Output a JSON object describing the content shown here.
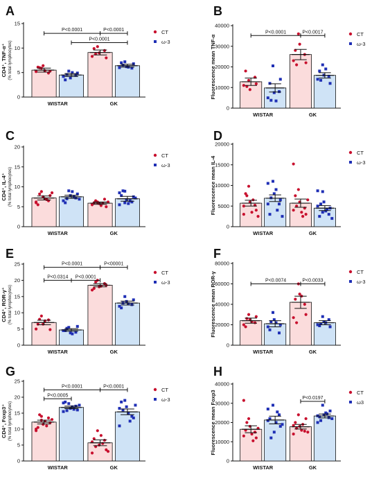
{
  "colors": {
    "ct_fill": "#fbdcdc",
    "ct_dot": "#c8102e",
    "w3_fill": "#cfe3f6",
    "w3_dot": "#1f2fb5",
    "axis": "#111111"
  },
  "chart_data": [
    {
      "id": "A",
      "letter": "A",
      "type": "bar",
      "categories": [
        "WISTAR",
        "GK"
      ],
      "ylabel_main": "CD4⁺, TNF-α⁺",
      "ylabel_sub": "(% total lymphocytes)",
      "ylim": [
        0,
        15
      ],
      "yticks": [
        0,
        5,
        10,
        15
      ],
      "legend": [
        "CT",
        "ω-3"
      ],
      "series": [
        {
          "name": "CT",
          "means": [
            5.5,
            9.1
          ],
          "sem": [
            0.4,
            0.5
          ],
          "points": [
            [
              5.2,
              5.9,
              6.4,
              4.9,
              5.3,
              6.1,
              6.0,
              5.4
            ],
            [
              8.3,
              10.3,
              9.0,
              9.5,
              8.0,
              9.9,
              8.8
            ]
          ]
        },
        {
          "name": "ω-3",
          "means": [
            4.5,
            6.4
          ],
          "sem": [
            0.3,
            0.3
          ],
          "points": [
            [
              4.2,
              5.3,
              3.9,
              4.5,
              4.9,
              3.5,
              4.6,
              5.0
            ],
            [
              6.0,
              7.2,
              6.2,
              5.9,
              6.8,
              7.0,
              6.5,
              6.1
            ]
          ]
        }
      ],
      "comparisons": [
        {
          "label": "P<0.0001",
          "from": "0:0",
          "to": "1:0",
          "y": 13.0,
          "row": 0
        },
        {
          "label": "P<0.0001",
          "from": "1:0",
          "to": "1:1",
          "y": 13.0,
          "row": 0
        },
        {
          "label": "P<0.0001",
          "from": "0:1",
          "to": "1:1",
          "y": 11.1,
          "row": 1
        }
      ]
    },
    {
      "id": "B",
      "letter": "B",
      "type": "bar",
      "categories": [
        "WISTAR",
        "GK"
      ],
      "ylabel_main": "Fluorescence mean TNF-α",
      "ylabel_sub": "",
      "ylim": [
        0,
        40000
      ],
      "yticks": [
        0,
        10000,
        20000,
        30000,
        40000
      ],
      "legend": [
        "CT",
        "ω-3"
      ],
      "series": [
        {
          "name": "CT",
          "means": [
            12800,
            26000
          ],
          "sem": [
            1800,
            2500
          ],
          "points": [
            [
              11000,
              13500,
              9000,
              15000,
              11800,
              18000,
              10500
            ],
            [
              23000,
              36000,
              31000,
              26000,
              22000,
              28000,
              21000
            ]
          ]
        },
        {
          "name": "ω-3",
          "means": [
            9800,
            15900
          ],
          "sem": [
            2000,
            1300
          ],
          "points": [
            [
              5000,
              20500,
              7500,
              8000,
              14000,
              12000,
              3800,
              3500
            ],
            [
              14000,
              21000,
              16000,
              15500,
              12000,
              18000,
              13500,
              19000
            ]
          ]
        }
      ],
      "comparisons": [
        {
          "label": "P<0.0001",
          "from": "0:0",
          "to": "1:0",
          "y": 35200,
          "row": 0
        },
        {
          "label": "P<0.0017",
          "from": "1:0",
          "to": "1:1",
          "y": 35200,
          "row": 0
        }
      ]
    },
    {
      "id": "C",
      "letter": "C",
      "type": "bar",
      "categories": [
        "WISTAR",
        "GK"
      ],
      "ylabel_main": "CD4⁺, IL-4⁺",
      "ylabel_sub": "(% total lymphocytes)",
      "ylim": [
        0,
        20
      ],
      "yticks": [
        0,
        5,
        10,
        15,
        20
      ],
      "legend": [
        "CT",
        "ω-3"
      ],
      "series": [
        {
          "name": "CT",
          "means": [
            7.2,
            5.9
          ],
          "sem": [
            0.5,
            0.3
          ],
          "points": [
            [
              6.0,
              8.8,
              7.5,
              6.5,
              7.8,
              5.5,
              8.2,
              7.0,
              6.8,
              8.5,
              6.2
            ],
            [
              5.5,
              6.2,
              5.8,
              6.9,
              5.0,
              6.0,
              6.5,
              5.3,
              5.9,
              6.2,
              5.6,
              6.0
            ]
          ]
        },
        {
          "name": "ω-3",
          "means": [
            7.5,
            7.0
          ],
          "sem": [
            0.4,
            0.6
          ],
          "points": [
            [
              6.5,
              9.0,
              7.8,
              7.2,
              8.2,
              6.0,
              7.0,
              8.8,
              7.5,
              6.9
            ],
            [
              5.5,
              8.9,
              6.8,
              6.2,
              7.5,
              7.8,
              9.0,
              5.8,
              6.5,
              7.2,
              8.5,
              6.0
            ]
          ]
        }
      ],
      "comparisons": []
    },
    {
      "id": "D",
      "letter": "D",
      "type": "bar",
      "categories": [
        "WISTAR",
        "GK"
      ],
      "ylabel_main": "Fluorescence mean IL-4",
      "ylabel_sub": "",
      "ylim": [
        0,
        20000
      ],
      "yticks": [
        0,
        5000,
        10000,
        15000,
        20000
      ],
      "legend": [
        "CT",
        "ω-3"
      ],
      "series": [
        {
          "name": "CT",
          "means": [
            5700,
            5700
          ],
          "sem": [
            700,
            1000
          ],
          "points": [
            [
              3000,
              9800,
              6000,
              5200,
              4000,
              8000,
              7500,
              3500,
              6500,
              2500,
              5000
            ],
            [
              15200,
              9000,
              6000,
              4500,
              3000,
              7500,
              5000,
              3500,
              2500,
              6500,
              4000
            ]
          ]
        },
        {
          "name": "ω-3",
          "means": [
            6900,
            4500
          ],
          "sem": [
            800,
            600
          ],
          "points": [
            [
              10500,
              11000,
              8000,
              5500,
              6500,
              3000,
              7000,
              9000,
              4000,
              2500,
              5500
            ],
            [
              8700,
              8500,
              6000,
              3000,
              4500,
              2500,
              5500,
              3800,
              4200,
              2000,
              5000,
              3500
            ]
          ]
        }
      ],
      "comparisons": []
    },
    {
      "id": "E",
      "letter": "E",
      "type": "bar",
      "categories": [
        "WISTAR",
        "GK"
      ],
      "ylabel_main": "CD4⁺, ROR-γ⁺",
      "ylabel_sub": "(% total lymphocytes)",
      "ylim": [
        0,
        25
      ],
      "yticks": [
        0,
        5,
        10,
        15,
        20,
        25
      ],
      "legend": [
        "CT",
        "ω-3"
      ],
      "series": [
        {
          "name": "CT",
          "means": [
            7.0,
            18.5
          ],
          "sem": [
            0.7,
            0.5
          ],
          "points": [
            [
              5.0,
              9.0,
              6.5,
              7.8,
              4.8,
              6.5,
              8.0,
              7.5
            ],
            [
              17.0,
              20.0,
              18.0,
              19.0,
              18.5,
              17.5,
              19.5,
              18.2
            ]
          ]
        },
        {
          "name": "ω-3",
          "means": [
            4.7,
            13.0
          ],
          "sem": [
            0.4,
            0.6
          ],
          "points": [
            [
              4.5,
              5.5,
              3.8,
              4.0,
              5.8,
              4.5,
              5.2,
              3.5
            ],
            [
              12.0,
              15.0,
              13.5,
              12.5,
              14.0,
              11.5,
              13.0,
              12.8
            ]
          ]
        }
      ],
      "comparisons": [
        {
          "label": "P<0.0001",
          "from": "0:0",
          "to": "1:0",
          "y": 24.0,
          "row": 0
        },
        {
          "label": "P<00001",
          "from": "1:0",
          "to": "1:1",
          "y": 24.0,
          "row": 0
        },
        {
          "label": "P<0.0314",
          "from": "0:0",
          "to": "0:1",
          "y": 20.0,
          "row": 1
        },
        {
          "label": "P<0.0001",
          "from": "0:1",
          "to": "1:0",
          "y": 20.0,
          "row": 1
        }
      ]
    },
    {
      "id": "F",
      "letter": "F",
      "type": "bar",
      "categories": [
        "WISTAR",
        "GK"
      ],
      "ylabel_main": "Fluorescence mean ROR-γ",
      "ylabel_sub": "",
      "ylim": [
        0,
        80000
      ],
      "yticks": [
        0,
        20000,
        40000,
        60000,
        80000
      ],
      "legend": [
        "CT",
        "ω-3"
      ],
      "series": [
        {
          "name": "CT",
          "means": [
            24000,
            42000
          ],
          "sem": [
            2500,
            6000
          ],
          "points": [
            [
              20000,
              30000,
              25000,
              22000,
              28000,
              18000,
              26000,
              23000
            ],
            [
              27000,
              60000,
              50000,
              40000,
              30000,
              45000,
              22000,
              48000
            ]
          ]
        },
        {
          "name": "ω-3",
          "means": [
            21000,
            22000
          ],
          "sem": [
            3000,
            2000
          ],
          "points": [
            [
              18000,
              32000,
              25000,
              12000,
              20000,
              15000,
              23000,
              22000
            ],
            [
              20000,
              28000,
              23000,
              25000,
              18000,
              19000,
              21000,
              22000
            ]
          ]
        }
      ],
      "comparisons": [
        {
          "label": "P<0.0074",
          "from": "0:0",
          "to": "1:0",
          "y": 60000,
          "row": 0
        },
        {
          "label": "P<0.0033",
          "from": "1:0",
          "to": "1:1",
          "y": 60000,
          "row": 0
        }
      ]
    },
    {
      "id": "G",
      "letter": "G",
      "type": "bar",
      "categories": [
        "WISTAR",
        "GK"
      ],
      "ylabel_main": "CD4⁺, Foxp3⁺",
      "ylabel_sub": "(% total lymphocytes)",
      "ylim": [
        0,
        25
      ],
      "yticks": [
        0,
        5,
        10,
        15,
        20,
        25
      ],
      "legend": [
        "CT",
        "ω-3"
      ],
      "series": [
        {
          "name": "CT",
          "means": [
            12.2,
            5.7
          ],
          "sem": [
            0.6,
            0.9
          ],
          "points": [
            [
              10.0,
              14.0,
              11.5,
              13.5,
              12.0,
              10.5,
              14.5,
              12.5,
              11.0,
              13.0,
              9.5,
              12.8
            ],
            [
              2.5,
              9.5,
              5.0,
              6.5,
              3.5,
              7.0,
              4.5,
              8.0,
              5.5,
              3.0,
              6.0
            ]
          ]
        },
        {
          "name": "ω-3",
          "means": [
            16.8,
            15.4
          ],
          "sem": [
            0.4,
            0.9
          ],
          "points": [
            [
              15.5,
              18.0,
              16.5,
              17.2,
              16.0,
              18.5,
              15.8,
              17.0,
              16.2,
              17.5,
              18.2
            ],
            [
              11.0,
              19.0,
              17.0,
              14.0,
              13.5,
              18.5,
              16.0,
              15.0,
              12.5,
              17.5,
              16.5
            ]
          ]
        }
      ],
      "comparisons": [
        {
          "label": "P<0.0001",
          "from": "0:0",
          "to": "1:0",
          "y": 22.3,
          "row": 0
        },
        {
          "label": "P<0.0001",
          "from": "1:0",
          "to": "1:1",
          "y": 22.3,
          "row": 0
        },
        {
          "label": "P<0.0005",
          "from": "0:0",
          "to": "0:1",
          "y": 19.5,
          "row": 1
        }
      ]
    },
    {
      "id": "H",
      "letter": "H",
      "type": "bar",
      "categories": [
        "WISTAR",
        "GK"
      ],
      "ylabel_main": "Fluorescence mean Foxp3",
      "ylabel_sub": "",
      "ylim": [
        0,
        40000
      ],
      "yticks": [
        0,
        10000,
        20000,
        30000,
        40000
      ],
      "legend": [
        "CT",
        "ω3"
      ],
      "series": [
        {
          "name": "CT",
          "means": [
            16500,
            17800
          ],
          "sem": [
            1800,
            1200
          ],
          "points": [
            [
              31500,
              22000,
              18000,
              15000,
              12000,
              16000,
              20000,
              14000,
              10500,
              17000,
              13000
            ],
            [
              14000,
              24000,
              18000,
              15500,
              22000,
              20000,
              17000,
              16000,
              19000,
              15000,
              18500
            ]
          ]
        },
        {
          "name": "ω3",
          "means": [
            21300,
            23400
          ],
          "sem": [
            2000,
            1000
          ],
          "points": [
            [
              27000,
              29000,
              15000,
              24000,
              18000,
              22000,
              12000,
              20000,
              25500,
              19000,
              21000
            ],
            [
              20000,
              29000,
              24000,
              22500,
              26000,
              23000,
              21000,
              25000,
              24500,
              22000,
              23500
            ]
          ]
        }
      ],
      "comparisons": [
        {
          "label": "P<0.0197",
          "from": "1:0",
          "to": "1:1",
          "y": 31000,
          "row": 0
        }
      ]
    }
  ]
}
